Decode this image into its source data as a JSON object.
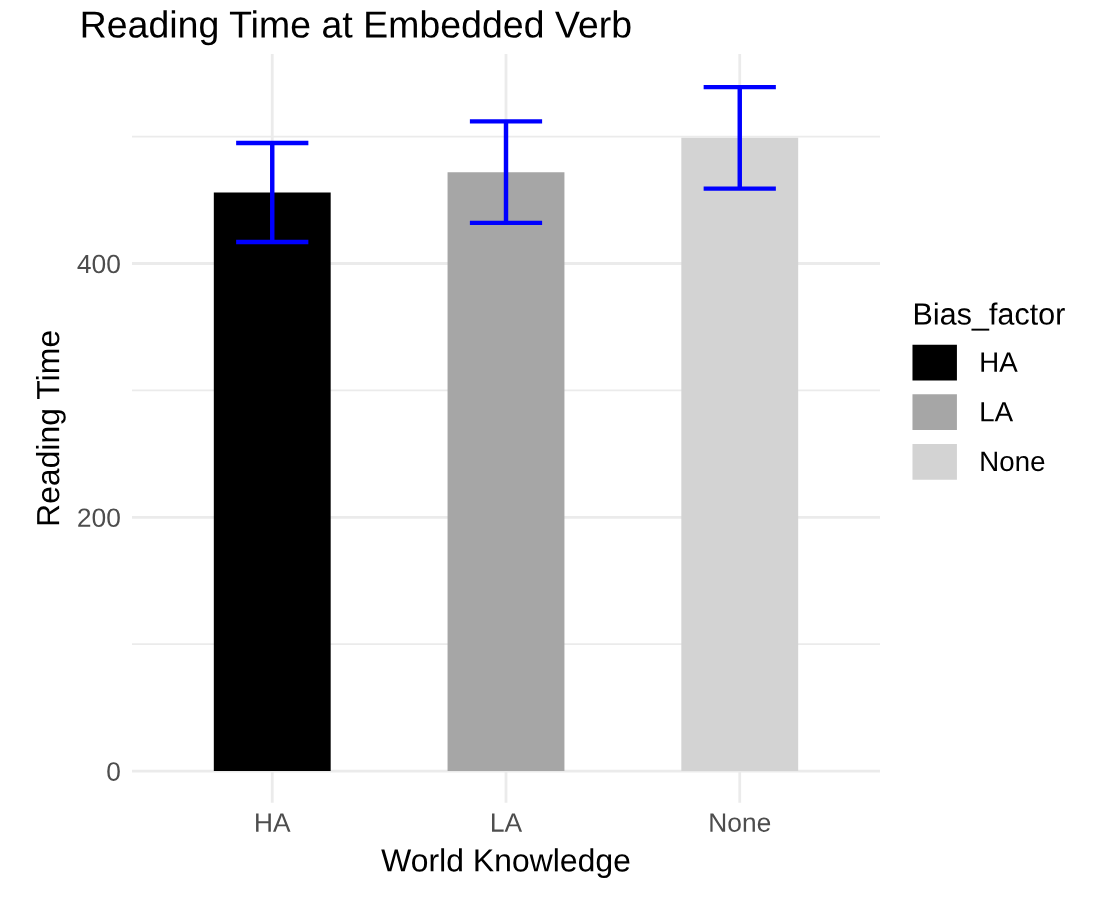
{
  "chart_data": {
    "type": "bar",
    "title": "Reading Time at Embedded Verb",
    "xlabel": "World Knowledge",
    "ylabel": "Reading Time",
    "legend_title": "Bias_factor",
    "categories": [
      "HA",
      "LA",
      "None"
    ],
    "series": [
      {
        "name": "HA",
        "color": "#000000",
        "values": [
          456,
          null,
          null
        ],
        "errors": [
          39,
          null,
          null
        ]
      },
      {
        "name": "LA",
        "color": "#a6a6a6",
        "values": [
          null,
          472,
          null
        ],
        "errors": [
          null,
          40,
          null
        ]
      },
      {
        "name": "None",
        "color": "#d3d3d3",
        "values": [
          null,
          null,
          499
        ],
        "errors": [
          null,
          null,
          40
        ]
      }
    ],
    "ylim": [
      -25,
      565
    ],
    "yticks": [
      0,
      {
        "value": 100,
        "label": null
      },
      200,
      {
        "value": 300,
        "label": null
      },
      400,
      {
        "value": 500,
        "label": null
      }
    ],
    "grid": true,
    "legend": "right"
  }
}
